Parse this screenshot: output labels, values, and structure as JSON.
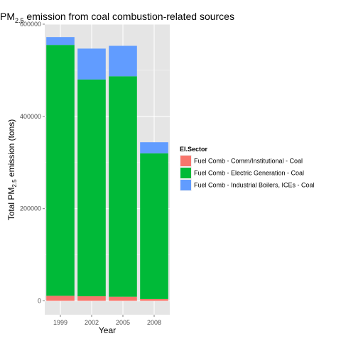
{
  "chart_data": {
    "type": "bar",
    "stacked": true,
    "title": {
      "prefix": "PM",
      "subscript": "2.5",
      "suffix": " emission from coal combustion-related sources"
    },
    "xlabel": "Year",
    "ylabel": {
      "prefix": "Total PM",
      "subscript": "2.5",
      "suffix": " emission (tons)"
    },
    "categories": [
      "1999",
      "2002",
      "2005",
      "2008"
    ],
    "ylim": [
      -30000,
      600000
    ],
    "yticks": [
      0,
      200000,
      400000,
      600000
    ],
    "ytick_labels": [
      "0",
      "200000",
      "400000",
      "600000"
    ],
    "grid": true,
    "legend": {
      "title": "EI.Sector",
      "placement": "right"
    },
    "series": [
      {
        "name": "Fuel Comb - Comm/Institutional - Coal",
        "color": "#F8766D",
        "values": [
          11000,
          10000,
          9000,
          4000
        ]
      },
      {
        "name": "Fuel Comb - Electric Generation - Coal",
        "color": "#00BA38",
        "values": [
          544000,
          470000,
          478000,
          316000
        ]
      },
      {
        "name": "Fuel Comb - Industrial Boilers, ICEs - Coal",
        "color": "#619CFF",
        "values": [
          17000,
          67000,
          66000,
          24000
        ]
      }
    ]
  }
}
